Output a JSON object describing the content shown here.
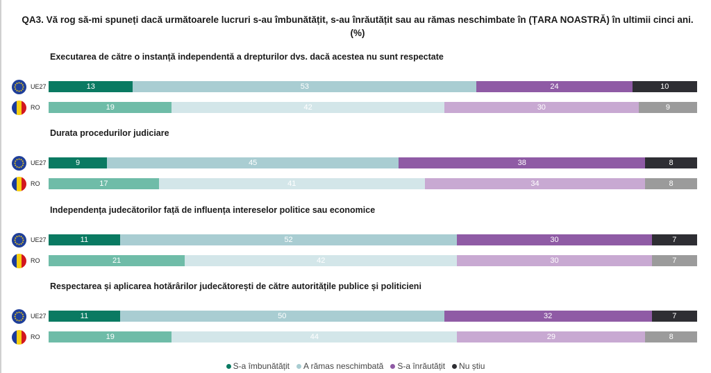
{
  "title": "QA3. Vă rog să-mi spuneți dacă următoarele lucruri s-au îmbunătățit, s-au înrăutățit sau au rămas neschimbate în (ȚARA NOASTRĂ) în ultimii cinci ani. (%)",
  "colors": {
    "UE27": [
      "#0a7a62",
      "#a9cdd2",
      "#8f5ba5",
      "#2e2e33"
    ],
    "RO": [
      "#6fbca8",
      "#d3e6e9",
      "#c8a9d2",
      "#9b9b9b"
    ]
  },
  "chart_data": {
    "type": "bar",
    "orientation": "horizontal",
    "stacked": true,
    "xlim": [
      0,
      100
    ],
    "legend_position": "bottom",
    "series_names": [
      "S-a îmbunătățit",
      "A rămas neschimbată",
      "S-a înrăutățit",
      "Nu știu"
    ],
    "groups": [
      {
        "title": "Executarea de către o instanță independentă a drepturilor dvs. dacă acestea nu sunt respectate",
        "rows": [
          {
            "label": "UE27",
            "values": [
              13,
              53,
              24,
              10
            ]
          },
          {
            "label": "RO",
            "values": [
              19,
              42,
              30,
              9
            ]
          }
        ]
      },
      {
        "title": "Durata procedurilor judiciare",
        "rows": [
          {
            "label": "UE27",
            "values": [
              9,
              45,
              38,
              8
            ]
          },
          {
            "label": "RO",
            "values": [
              17,
              41,
              34,
              8
            ]
          }
        ]
      },
      {
        "title": "Independența judecătorilor față de influența intereselor politice sau economice",
        "rows": [
          {
            "label": "UE27",
            "values": [
              11,
              52,
              30,
              7
            ]
          },
          {
            "label": "RO",
            "values": [
              21,
              42,
              30,
              7
            ]
          }
        ]
      },
      {
        "title": "Respectarea și aplicarea hotărârilor judecătorești de către autoritățile publice și politicieni",
        "rows": [
          {
            "label": "UE27",
            "values": [
              11,
              50,
              32,
              7
            ]
          },
          {
            "label": "RO",
            "values": [
              19,
              44,
              29,
              8
            ]
          }
        ]
      }
    ]
  }
}
